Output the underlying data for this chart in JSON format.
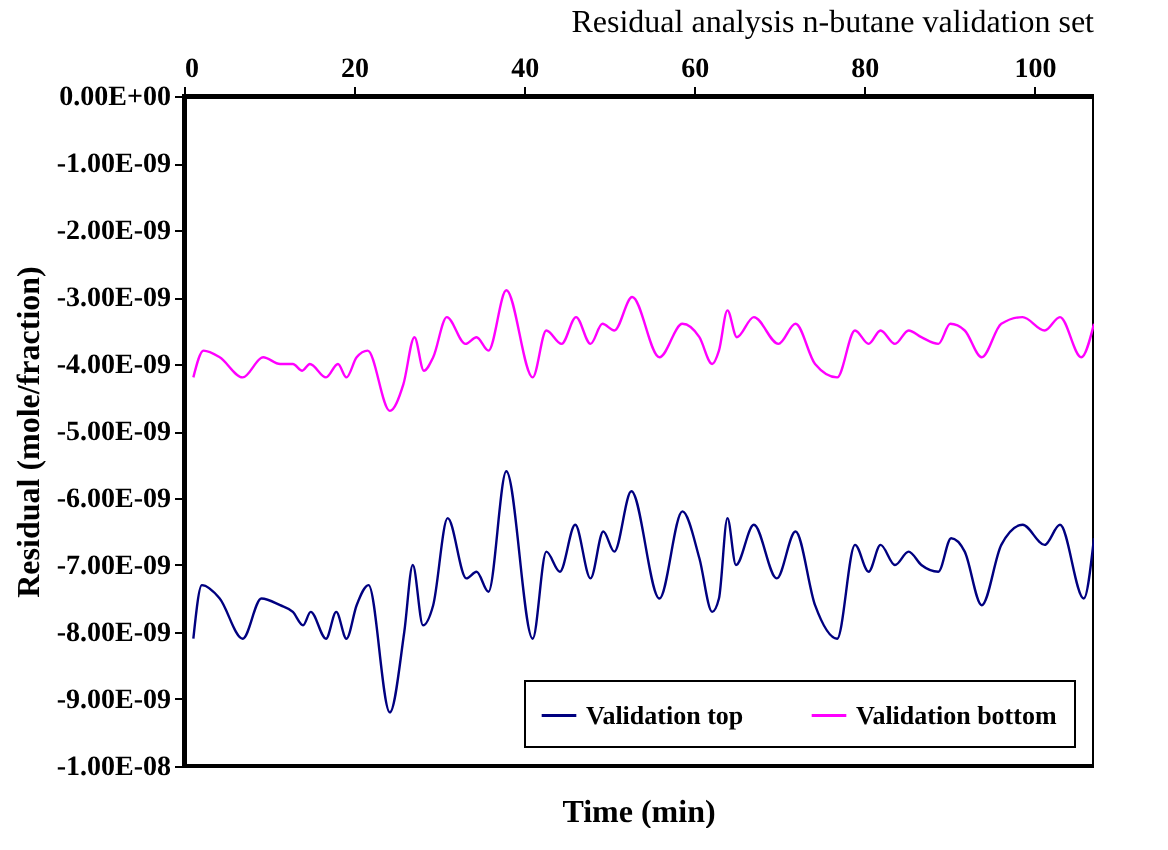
{
  "chart_data": {
    "type": "line",
    "title": "Residual analysis n-butane validation set",
    "xlabel": "Time (min)",
    "ylabel": "Residual (mole/fraction)",
    "xlim": [
      0,
      107
    ],
    "xticks": [
      0,
      20,
      40,
      60,
      80,
      100
    ],
    "ylim": [
      -1e-08,
      0
    ],
    "yticks": [
      {
        "value": 0,
        "label": "0.00E+00"
      },
      {
        "value": -1e-09,
        "label": "-1.00E-09"
      },
      {
        "value": -2e-09,
        "label": "-2.00E-09"
      },
      {
        "value": -3e-09,
        "label": "-3.00E-09"
      },
      {
        "value": -4e-09,
        "label": "-4.00E-09"
      },
      {
        "value": -5e-09,
        "label": "-5.00E-09"
      },
      {
        "value": -6e-09,
        "label": "-6.00E-09"
      },
      {
        "value": -7e-09,
        "label": "-7.00E-09"
      },
      {
        "value": -8e-09,
        "label": "-8.00E-09"
      },
      {
        "value": -9e-09,
        "label": "-9.00E-09"
      },
      {
        "value": -1e-08,
        "label": "-1.00E-08"
      }
    ],
    "grid": false,
    "legend": "bottom right",
    "marker": "none",
    "line_style": "solid",
    "series": [
      {
        "name": "Validation top",
        "color": "#000080",
        "x": [
          1.1,
          2.1,
          4.2,
          6.9,
          9.1,
          11.3,
          12.8,
          14.0,
          14.9,
          16.7,
          17.9,
          19.1,
          20.3,
          21.7,
          24.2,
          25.9,
          26.9,
          28.1,
          29.3,
          31.0,
          33.2,
          34.4,
          35.8,
          37.9,
          41.0,
          42.6,
          44.2,
          46.0,
          47.8,
          49.3,
          50.6,
          52.6,
          55.9,
          58.6,
          60.6,
          62.1,
          62.9,
          63.9,
          64.9,
          67.0,
          69.7,
          71.9,
          74.2,
          76.8,
          78.9,
          80.5,
          81.9,
          83.6,
          85.2,
          86.7,
          88.7,
          90.2,
          91.8,
          93.8,
          96.1,
          98.6,
          101.2,
          103.0,
          105.8,
          107.0
        ],
        "values": [
          -8.1e-09,
          -7.3e-09,
          -7.5e-09,
          -8.1e-09,
          -7.5e-09,
          -7.6e-09,
          -7.7e-09,
          -7.9e-09,
          -7.7e-09,
          -8.1e-09,
          -7.7e-09,
          -8.1e-09,
          -7.6e-09,
          -7.3e-09,
          -9.2e-09,
          -8e-09,
          -7e-09,
          -7.9e-09,
          -7.6e-09,
          -6.3e-09,
          -7.2e-09,
          -7.1e-09,
          -7.4e-09,
          -5.6e-09,
          -8.1e-09,
          -6.8e-09,
          -7.1e-09,
          -6.4e-09,
          -7.2e-09,
          -6.5e-09,
          -6.8e-09,
          -5.9e-09,
          -7.5e-09,
          -6.2e-09,
          -6.9e-09,
          -7.7e-09,
          -7.5e-09,
          -6.3e-09,
          -7e-09,
          -6.4e-09,
          -7.2e-09,
          -6.5e-09,
          -7.6e-09,
          -8.1e-09,
          -6.7e-09,
          -7.1e-09,
          -6.7e-09,
          -7e-09,
          -6.8e-09,
          -7e-09,
          -7.1e-09,
          -6.6e-09,
          -6.8e-09,
          -7.6e-09,
          -6.7e-09,
          -6.4e-09,
          -6.7e-09,
          -6.4e-09,
          -7.5e-09,
          -6.6e-09
        ]
      },
      {
        "name": "Validation bottom",
        "color": "#ff00ff",
        "x": [
          1.1,
          2.3,
          4.2,
          6.9,
          9.3,
          11.3,
          12.8,
          13.9,
          14.8,
          16.7,
          18.1,
          19.1,
          20.3,
          21.6,
          24.2,
          25.8,
          27.1,
          28.2,
          29.3,
          30.9,
          33.1,
          34.4,
          35.8,
          37.9,
          41.0,
          42.6,
          44.4,
          46.1,
          47.8,
          49.2,
          50.6,
          52.7,
          55.9,
          58.6,
          60.6,
          62.1,
          62.9,
          63.9,
          65.0,
          67.0,
          69.9,
          71.9,
          74.2,
          76.8,
          78.9,
          80.5,
          81.9,
          83.6,
          85.2,
          86.7,
          88.7,
          90.1,
          91.8,
          93.8,
          96.1,
          98.6,
          101.2,
          103.0,
          105.5,
          107.0
        ],
        "values": [
          -4.2e-09,
          -3.8e-09,
          -3.9e-09,
          -4.2e-09,
          -3.9e-09,
          -4e-09,
          -4e-09,
          -4.1e-09,
          -4e-09,
          -4.2e-09,
          -4e-09,
          -4.2e-09,
          -3.9e-09,
          -3.8e-09,
          -4.7e-09,
          -4.3e-09,
          -3.6e-09,
          -4.1e-09,
          -3.9e-09,
          -3.3e-09,
          -3.7e-09,
          -3.6e-09,
          -3.8e-09,
          -2.9e-09,
          -4.2e-09,
          -3.5e-09,
          -3.7e-09,
          -3.3e-09,
          -3.7e-09,
          -3.4e-09,
          -3.5e-09,
          -3e-09,
          -3.9e-09,
          -3.4e-09,
          -3.6e-09,
          -4e-09,
          -3.8e-09,
          -3.2e-09,
          -3.6e-09,
          -3.3e-09,
          -3.7e-09,
          -3.4e-09,
          -4e-09,
          -4.2e-09,
          -3.5e-09,
          -3.7e-09,
          -3.5e-09,
          -3.7e-09,
          -3.5e-09,
          -3.6e-09,
          -3.7e-09,
          -3.4e-09,
          -3.5e-09,
          -3.9e-09,
          -3.4e-09,
          -3.3e-09,
          -3.5e-09,
          -3.3e-09,
          -3.9e-09,
          -3.4e-09
        ]
      }
    ]
  }
}
